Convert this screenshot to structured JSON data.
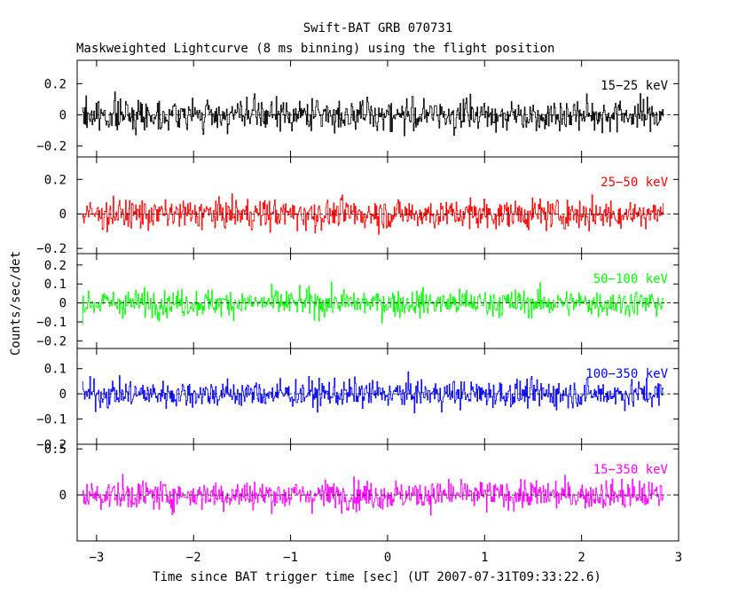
{
  "chart_data": {
    "type": "line",
    "title": "Swift-BAT GRB 070731",
    "subtitle": "Maskweighted Lightcurve (8 ms binning) using the flight position",
    "xlabel": "Time since BAT trigger time [sec] (UT 2007-07-31T09:33:22.6)",
    "ylabel": "Counts/sec/det",
    "xlim": [
      -3.2,
      3.0
    ],
    "data_xrange": [
      -3.15,
      2.85
    ],
    "bin_width_s": 0.008,
    "x_ticks": [
      "−3",
      "−2",
      "−1",
      "0",
      "1",
      "2",
      "3"
    ],
    "panels": [
      {
        "name": "panel-15-25",
        "band_label": "15−25 keV",
        "color": "#000000",
        "ylim": [
          -0.27,
          0.35
        ],
        "ticks": [
          -0.2,
          0,
          0.2
        ],
        "tick_labels": [
          "−0.2",
          "0",
          "0.2"
        ],
        "approx_amplitude": 0.13,
        "approx_mean": 0.0
      },
      {
        "name": "panel-25-50",
        "band_label": "25−50 keV",
        "color": "#ff0000",
        "ylim": [
          -0.23,
          0.33
        ],
        "ticks": [
          -0.2,
          0,
          0.2
        ],
        "tick_labels": [
          "−0.2",
          "0",
          "0.2"
        ],
        "approx_amplitude": 0.11,
        "approx_mean": 0.0
      },
      {
        "name": "panel-50-100",
        "band_label": "50−100 keV",
        "color": "#00ff00",
        "ylim": [
          -0.24,
          0.26
        ],
        "ticks": [
          -0.2,
          -0.1,
          0,
          0.1,
          0.2
        ],
        "tick_labels": [
          "−0.2",
          "−0.1",
          "0",
          "0.1",
          "0.2"
        ],
        "approx_amplitude": 0.09,
        "approx_mean": 0.0
      },
      {
        "name": "panel-100-350",
        "band_label": "100−350 keV",
        "color": "#0000ff",
        "ylim": [
          -0.2,
          0.18
        ],
        "ticks": [
          -0.2,
          -0.1,
          0,
          0.1
        ],
        "tick_labels": [
          "−0.2",
          "−0.1",
          "0",
          "0.1"
        ],
        "approx_amplitude": 0.07,
        "approx_mean": 0.0
      },
      {
        "name": "panel-15-350",
        "band_label": "15−350 keV",
        "color": "#ff00ff",
        "ylim": [
          -0.5,
          0.55
        ],
        "ticks": [
          0,
          0.5
        ],
        "tick_labels": [
          "0",
          "0.5"
        ],
        "approx_amplitude": 0.2,
        "approx_mean": 0.0
      }
    ]
  }
}
